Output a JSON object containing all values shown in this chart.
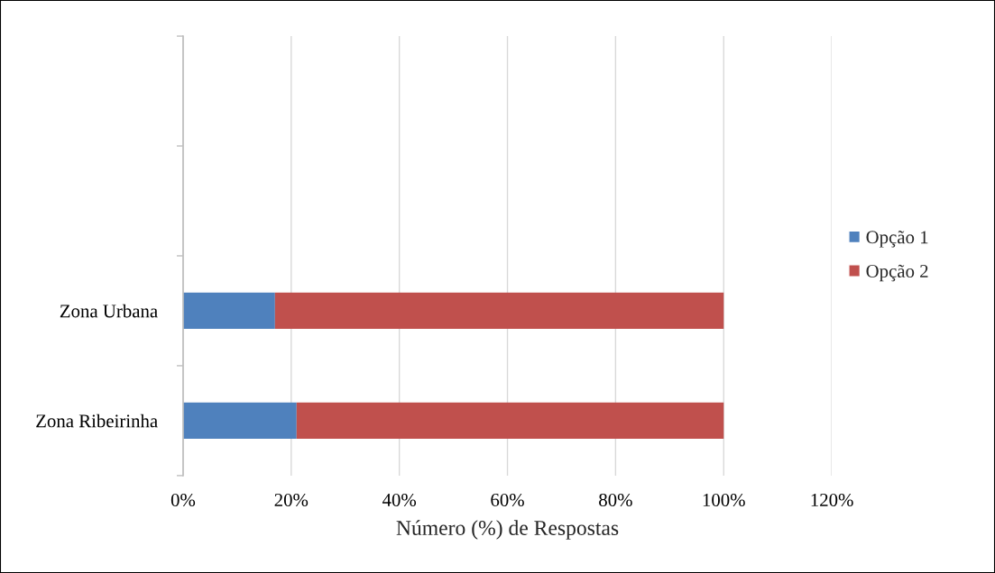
{
  "chart_data": {
    "type": "bar",
    "orientation": "horizontal",
    "stacked": true,
    "categories": [
      null,
      null,
      "Zona Urbana",
      "Zona Ribeirinha"
    ],
    "series": [
      {
        "name": "Opção 1",
        "color": "#4f81bd",
        "values": [
          null,
          null,
          17,
          21
        ]
      },
      {
        "name": "Opção 2",
        "color": "#c0504d",
        "values": [
          null,
          null,
          83,
          79
        ]
      }
    ],
    "xlabel": "Número (%) de Respostas",
    "xlim": [
      0,
      120
    ],
    "xticks": [
      {
        "value": 0,
        "label": "0%"
      },
      {
        "value": 20,
        "label": "20%"
      },
      {
        "value": 40,
        "label": "40%"
      },
      {
        "value": 60,
        "label": "60%"
      },
      {
        "value": 80,
        "label": "80%"
      },
      {
        "value": 100,
        "label": "100%"
      },
      {
        "value": 120,
        "label": "120%"
      }
    ],
    "grid": "x",
    "legend": "right"
  }
}
